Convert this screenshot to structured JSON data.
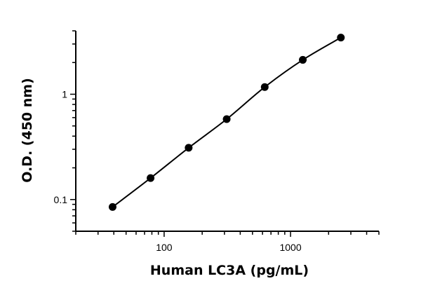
{
  "chart_data": {
    "type": "scatter",
    "title": "",
    "xlabel": "Human LC3A (pg/mL)",
    "ylabel": "O.D. (450 nm)",
    "xscale": "log",
    "yscale": "log",
    "xlim": [
      20,
      5000
    ],
    "ylim": [
      0.05,
      4
    ],
    "x_tick_labels": [
      "100",
      "1000"
    ],
    "y_tick_labels": [
      "0.1",
      "1"
    ],
    "grid": false,
    "legend": "none",
    "series": [
      {
        "x": [
          39.1,
          78.1,
          156.3,
          312.5,
          625,
          1250,
          2500
        ],
        "y": [
          0.085,
          0.16,
          0.31,
          0.58,
          1.17,
          2.12,
          3.45
        ],
        "markers": true,
        "fit_line": true
      }
    ],
    "colors": {
      "series": "#000000",
      "axis": "#000000"
    }
  }
}
